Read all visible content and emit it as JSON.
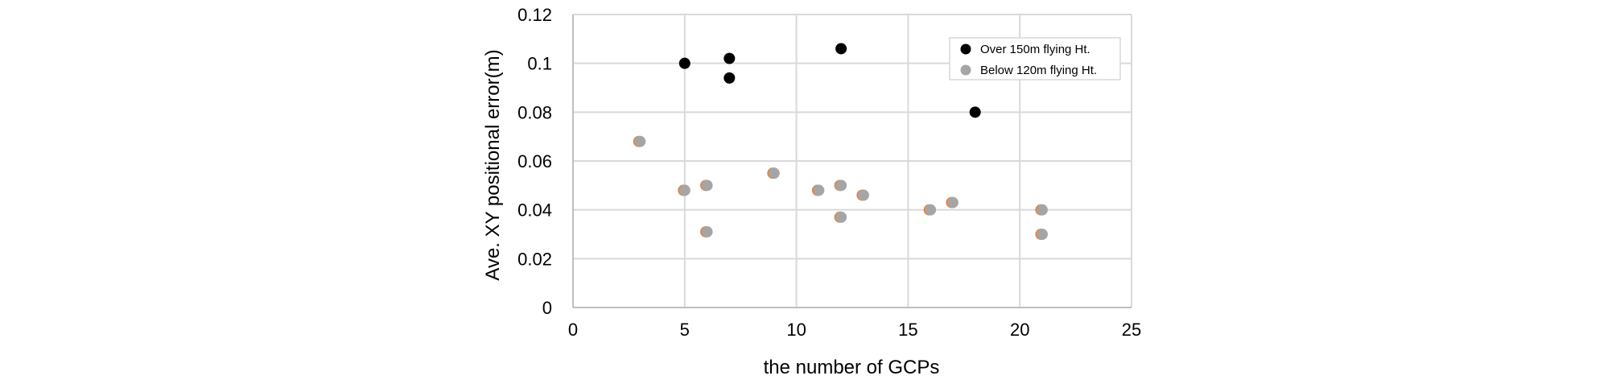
{
  "chart_data": {
    "type": "scatter",
    "title": "",
    "xlabel": "the number of GCPs",
    "ylabel": "Ave. XY positional error(m)",
    "xlim": [
      0,
      25
    ],
    "ylim": [
      0,
      0.12
    ],
    "xticks": [
      0,
      5,
      10,
      15,
      20,
      25
    ],
    "xtick_labels": [
      "0",
      "5",
      "10",
      "15",
      "20",
      "25"
    ],
    "yticks": [
      0,
      0.02,
      0.04,
      0.06,
      0.08,
      0.1,
      0.12
    ],
    "ytick_labels": [
      "0",
      "0.02",
      "0.04",
      "0.06",
      "0.08",
      "0.1",
      "0.12"
    ],
    "grid": true,
    "legend_position": "top-right",
    "series": [
      {
        "name": "Over 150m flying Ht.",
        "color": "#000000",
        "points": [
          {
            "x": 5,
            "y": 0.1
          },
          {
            "x": 7,
            "y": 0.102
          },
          {
            "x": 7,
            "y": 0.094
          },
          {
            "x": 12,
            "y": 0.106
          },
          {
            "x": 18,
            "y": 0.08
          }
        ]
      },
      {
        "name": "Below 120m flying Ht.",
        "color": "#a5a5a5",
        "points": [
          {
            "x": 3,
            "y": 0.068
          },
          {
            "x": 5,
            "y": 0.048
          },
          {
            "x": 6,
            "y": 0.05
          },
          {
            "x": 6,
            "y": 0.031
          },
          {
            "x": 9,
            "y": 0.055
          },
          {
            "x": 11,
            "y": 0.048
          },
          {
            "x": 12,
            "y": 0.05
          },
          {
            "x": 12,
            "y": 0.037
          },
          {
            "x": 13,
            "y": 0.046
          },
          {
            "x": 16,
            "y": 0.04
          },
          {
            "x": 17,
            "y": 0.043
          },
          {
            "x": 21,
            "y": 0.04
          },
          {
            "x": 21,
            "y": 0.03
          }
        ]
      }
    ]
  }
}
